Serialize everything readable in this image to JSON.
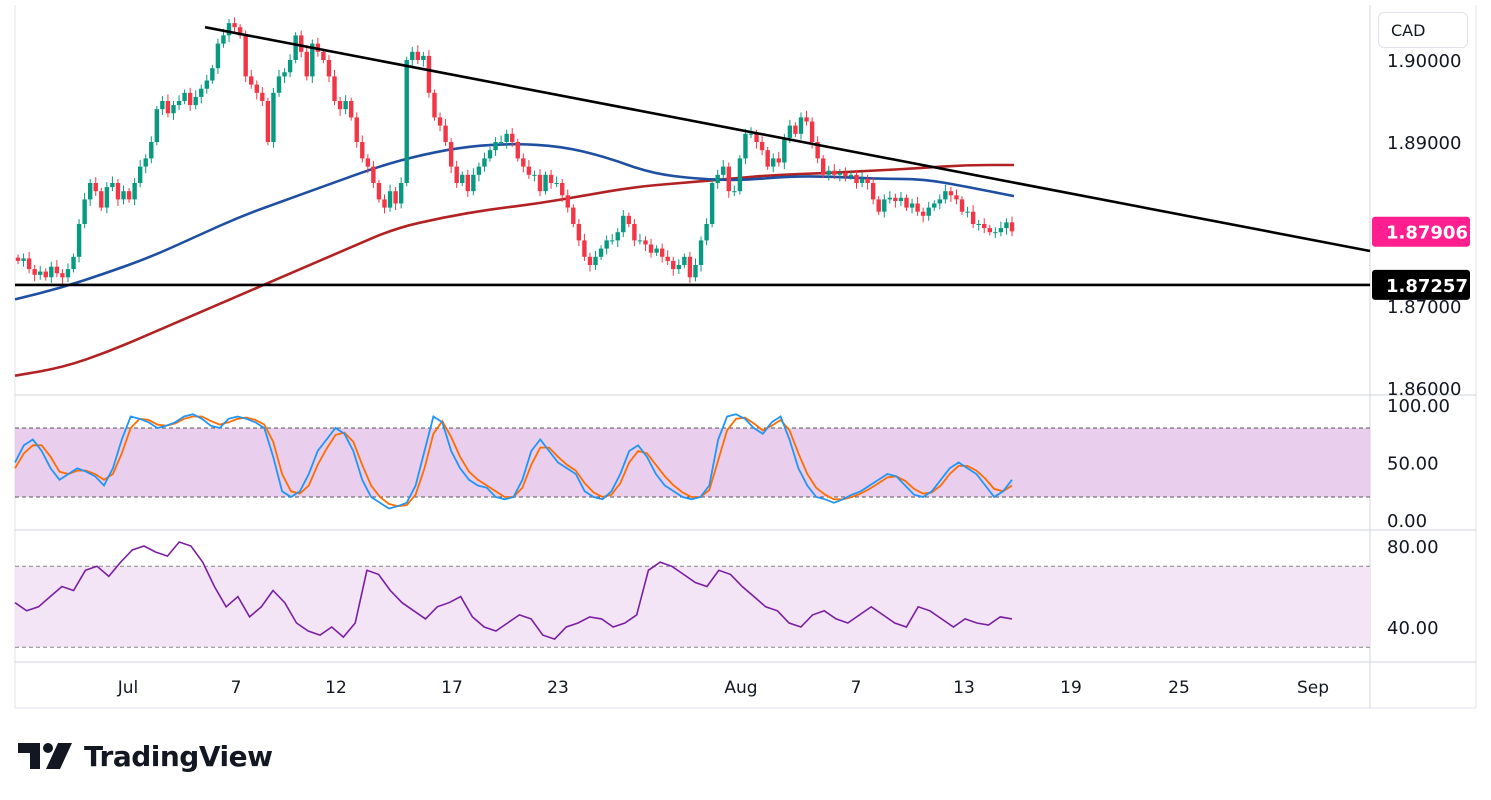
{
  "header": {
    "currency": "CAD"
  },
  "brand": {
    "name": "TradingView"
  },
  "price_pane": {
    "y_ticks": [
      "1.90000",
      "1.89000",
      "1.87000",
      "1.86000"
    ],
    "last_price_tag": "1.87906",
    "support_tag": "1.87257"
  },
  "stoch_pane": {
    "y_ticks": [
      "100.00",
      "50.00",
      "0.00"
    ]
  },
  "rsi_pane": {
    "y_ticks": [
      "80.00",
      "40.00"
    ]
  },
  "time_axis": {
    "labels": [
      "Jul",
      "7",
      "12",
      "17",
      "23",
      "Aug",
      "7",
      "13",
      "19",
      "25",
      "Sep"
    ]
  },
  "colors": {
    "bull_candle": "#089981",
    "bear_candle": "#f23645",
    "ma_fast": "#1e4fa0",
    "ma_slow": "#b22222",
    "trendline": "#000000",
    "stoch_k": "#2196f3",
    "stoch_d": "#ff6d00",
    "rsi": "#7b1fa2",
    "band_fill": "#e1bee7",
    "last_price_tag_bg": "#ff1f8f"
  },
  "chart_data": [
    {
      "type": "candlestick",
      "title": "",
      "ylim": [
        1.86,
        1.905
      ],
      "x_range": [
        "Jul 1",
        "Sep 1"
      ],
      "close": [
        1.8755,
        1.8758,
        1.8745,
        1.8738,
        1.8742,
        1.8735,
        1.8748,
        1.874,
        1.8735,
        1.8745,
        1.876,
        1.88,
        1.883,
        1.885,
        1.884,
        1.882,
        1.8845,
        1.885,
        1.883,
        1.884,
        1.883,
        1.885,
        1.887,
        1.888,
        1.89,
        1.894,
        1.895,
        1.8935,
        1.8945,
        1.895,
        1.896,
        1.8945,
        1.8955,
        1.8965,
        1.8975,
        1.899,
        1.902,
        1.903,
        1.9045,
        1.904,
        1.903,
        1.898,
        1.897,
        1.896,
        1.895,
        1.89,
        1.896,
        1.898,
        1.8985,
        1.9,
        1.903,
        1.901,
        1.898,
        1.902,
        1.901,
        1.9,
        1.898,
        1.895,
        1.894,
        1.895,
        1.893,
        1.89,
        1.888,
        1.887,
        1.885,
        1.883,
        1.882,
        1.884,
        1.8825,
        1.885,
        1.9,
        1.901,
        1.9,
        1.9005,
        1.896,
        1.893,
        1.892,
        1.89,
        1.887,
        1.885,
        1.886,
        1.884,
        1.886,
        1.887,
        1.888,
        1.889,
        1.89,
        1.89,
        1.891,
        1.89,
        1.888,
        1.887,
        1.886,
        1.886,
        1.884,
        1.886,
        1.885,
        1.885,
        1.8835,
        1.882,
        1.88,
        1.878,
        1.876,
        1.875,
        1.876,
        1.877,
        1.878,
        1.878,
        1.879,
        1.881,
        1.88,
        1.878,
        1.878,
        1.8775,
        1.8765,
        1.877,
        1.876,
        1.8755,
        1.8745,
        1.875,
        1.876,
        1.8735,
        1.875,
        1.878,
        1.88,
        1.885,
        1.886,
        1.887,
        1.884,
        1.884,
        1.888,
        1.891,
        1.891,
        1.89,
        1.889,
        1.887,
        1.888,
        1.8875,
        1.8905,
        1.892,
        1.891,
        1.893,
        1.8925,
        1.89,
        1.888,
        1.886,
        1.8865,
        1.886,
        1.8862,
        1.8858,
        1.886,
        1.885,
        1.8855,
        1.885,
        1.883,
        1.8815,
        1.883,
        1.8832,
        1.8828,
        1.8832,
        1.882,
        1.8825,
        1.8815,
        1.881,
        1.882,
        1.8825,
        1.883,
        1.884,
        1.8835,
        1.883,
        1.8815,
        1.8815,
        1.88,
        1.88,
        1.8795,
        1.879,
        1.879,
        1.8795,
        1.8802,
        1.8791
      ],
      "ma_fast": [
        1.8708,
        1.8722,
        1.874,
        1.876,
        1.8785,
        1.881,
        1.883,
        1.885,
        1.887,
        1.8885,
        1.8895,
        1.8898,
        1.8895,
        1.8882,
        1.8862,
        1.8855,
        1.8853,
        1.8858,
        1.8858,
        1.8855,
        1.8855,
        1.8845,
        1.8834
      ],
      "ma_slow": [
        1.8615,
        1.8625,
        1.8645,
        1.867,
        1.8695,
        1.872,
        1.8745,
        1.877,
        1.8795,
        1.8808,
        1.8818,
        1.8825,
        1.8835,
        1.8845,
        1.885,
        1.8855,
        1.886,
        1.8862,
        1.8865,
        1.8868,
        1.8872,
        1.8872
      ],
      "trendline": [
        [
          "Jul 5",
          1.904
        ],
        [
          "Sep 1",
          1.878
        ]
      ],
      "support_level": 1.87257,
      "last_price": 1.87906
    },
    {
      "type": "line",
      "title": "",
      "ylim": [
        0,
        100
      ],
      "bands": [
        20,
        80
      ],
      "series": [
        {
          "values": [
            50,
            65,
            70,
            60,
            45,
            35,
            40,
            45,
            42,
            38,
            30,
            45,
            70,
            90,
            88,
            85,
            80,
            82,
            85,
            90,
            92,
            88,
            82,
            80,
            88,
            90,
            88,
            85,
            80,
            55,
            25,
            20,
            25,
            40,
            60,
            70,
            80,
            75,
            60,
            35,
            20,
            15,
            10,
            12,
            15,
            30,
            60,
            90,
            85,
            60,
            45,
            35,
            30,
            28,
            20,
            18,
            20,
            35,
            60,
            70,
            60,
            50,
            45,
            40,
            25,
            20,
            18,
            25,
            40,
            60,
            65,
            55,
            40,
            30,
            25,
            20,
            18,
            20,
            30,
            70,
            90,
            92,
            88,
            80,
            75,
            85,
            90,
            70,
            45,
            30,
            20,
            18,
            15,
            18,
            22,
            25,
            30,
            35,
            40,
            38,
            30,
            22,
            20,
            25,
            35,
            45,
            50,
            45,
            40,
            30,
            20,
            25,
            35
          ]
        },
        {
          "values": [
            45,
            58,
            65,
            65,
            55,
            42,
            40,
            43,
            43,
            40,
            35,
            40,
            58,
            80,
            88,
            87,
            83,
            82,
            84,
            88,
            90,
            90,
            86,
            83,
            85,
            88,
            89,
            87,
            83,
            68,
            40,
            25,
            23,
            30,
            48,
            62,
            74,
            76,
            68,
            48,
            30,
            20,
            14,
            12,
            13,
            22,
            45,
            75,
            86,
            72,
            55,
            42,
            35,
            30,
            25,
            20,
            20,
            28,
            48,
            63,
            63,
            55,
            48,
            43,
            32,
            24,
            20,
            22,
            32,
            50,
            60,
            58,
            48,
            38,
            30,
            24,
            20,
            20,
            26,
            52,
            78,
            88,
            89,
            84,
            78,
            82,
            87,
            78,
            58,
            40,
            28,
            22,
            18,
            18,
            20,
            23,
            27,
            32,
            37,
            38,
            34,
            27,
            23,
            24,
            30,
            40,
            47,
            47,
            43,
            36,
            27,
            25,
            30
          ]
        }
      ]
    },
    {
      "type": "line",
      "title": "",
      "ylim": [
        25,
        90
      ],
      "bands": [
        30,
        70
      ],
      "series": [
        {
          "values": [
            52,
            48,
            50,
            55,
            60,
            58,
            68,
            70,
            65,
            72,
            78,
            80,
            77,
            75,
            82,
            80,
            72,
            60,
            50,
            55,
            45,
            50,
            58,
            52,
            42,
            38,
            36,
            40,
            35,
            42,
            68,
            66,
            58,
            52,
            48,
            44,
            50,
            52,
            55,
            45,
            40,
            38,
            42,
            46,
            44,
            36,
            34,
            40,
            42,
            45,
            44,
            40,
            42,
            46,
            68,
            72,
            70,
            66,
            62,
            60,
            68,
            66,
            60,
            55,
            50,
            48,
            42,
            40,
            46,
            48,
            44,
            42,
            46,
            50,
            46,
            42,
            40,
            50,
            48,
            44,
            40,
            44,
            42,
            41,
            45,
            44
          ]
        }
      ]
    }
  ]
}
